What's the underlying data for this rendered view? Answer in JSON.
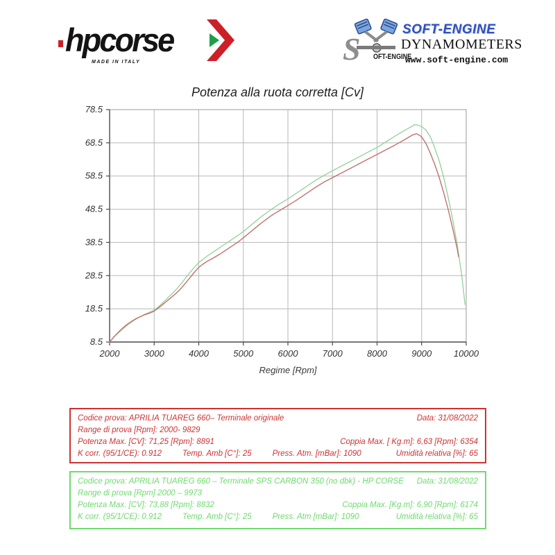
{
  "page_title": "Potenza alla ruota corretta [Cv]",
  "logos": {
    "hpcorse": {
      "wordmark": "hpcorse",
      "made_in": "MADE IN ITALY"
    },
    "softengine": {
      "s_glyph": "S",
      "s_text": "OFT-ENGINE",
      "brand": "SOFT-ENGINE",
      "subtitle": "DYNAMOMETERS",
      "url": "www.soft-engine.com"
    }
  },
  "chart_data": {
    "type": "line",
    "title": "Potenza alla ruota corretta [Cv]",
    "xlabel": "Regime [Rpm]",
    "ylabel": "",
    "xlim": [
      2000,
      10000
    ],
    "ylim": [
      8.5,
      78.5
    ],
    "x_ticks": [
      2000,
      3000,
      4000,
      5000,
      6000,
      7000,
      8000,
      9000,
      10000
    ],
    "y_ticks": [
      8.5,
      18.5,
      28.5,
      38.5,
      48.5,
      58.5,
      68.5,
      78.5
    ],
    "grid": true,
    "legend": "none (identified by info boxes below)",
    "series": [
      {
        "name": "Terminale SPS CARBON 350 (no dbk) - HP CORSE",
        "color": "#9ad29e",
        "points": [
          [
            2000,
            8.5
          ],
          [
            2100,
            10.0
          ],
          [
            2200,
            11.3
          ],
          [
            2300,
            12.5
          ],
          [
            2400,
            13.6
          ],
          [
            2500,
            14.6
          ],
          [
            2600,
            15.5
          ],
          [
            2700,
            16.2
          ],
          [
            2800,
            16.9
          ],
          [
            2900,
            17.5
          ],
          [
            3000,
            18.1
          ],
          [
            3100,
            19.2
          ],
          [
            3200,
            20.4
          ],
          [
            3300,
            21.7
          ],
          [
            3400,
            23.0
          ],
          [
            3500,
            24.4
          ],
          [
            3600,
            26.0
          ],
          [
            3700,
            27.7
          ],
          [
            3800,
            29.4
          ],
          [
            3900,
            31.0
          ],
          [
            4000,
            32.4
          ],
          [
            4100,
            33.5
          ],
          [
            4200,
            34.5
          ],
          [
            4300,
            35.4
          ],
          [
            4400,
            36.3
          ],
          [
            4500,
            37.2
          ],
          [
            4600,
            38.1
          ],
          [
            4700,
            39.0
          ],
          [
            4800,
            39.9
          ],
          [
            4900,
            40.8
          ],
          [
            5000,
            41.8
          ],
          [
            5100,
            42.9
          ],
          [
            5200,
            44.0
          ],
          [
            5300,
            45.1
          ],
          [
            5400,
            46.2
          ],
          [
            5500,
            47.2
          ],
          [
            5600,
            48.2
          ],
          [
            5700,
            49.1
          ],
          [
            5800,
            50.0
          ],
          [
            5900,
            50.8
          ],
          [
            6000,
            51.6
          ],
          [
            6200,
            53.4
          ],
          [
            6400,
            55.2
          ],
          [
            6600,
            57.0
          ],
          [
            6800,
            58.6
          ],
          [
            7000,
            60.1
          ],
          [
            7200,
            61.5
          ],
          [
            7400,
            62.9
          ],
          [
            7600,
            64.3
          ],
          [
            7800,
            65.7
          ],
          [
            8000,
            67.1
          ],
          [
            8200,
            68.8
          ],
          [
            8400,
            70.5
          ],
          [
            8600,
            72.1
          ],
          [
            8800,
            73.6
          ],
          [
            8832,
            73.9
          ],
          [
            8900,
            73.9
          ],
          [
            9000,
            73.4
          ],
          [
            9100,
            72.3
          ],
          [
            9200,
            70.2
          ],
          [
            9300,
            66.8
          ],
          [
            9400,
            62.8
          ],
          [
            9500,
            57.8
          ],
          [
            9600,
            51.8
          ],
          [
            9700,
            45.2
          ],
          [
            9800,
            37.8
          ],
          [
            9900,
            28.5
          ],
          [
            9973,
            19.8
          ]
        ]
      },
      {
        "name": "Terminale originale",
        "color": "#c0706c",
        "points": [
          [
            2000,
            8.5
          ],
          [
            2100,
            10.1
          ],
          [
            2200,
            11.5
          ],
          [
            2300,
            12.8
          ],
          [
            2400,
            13.9
          ],
          [
            2500,
            14.8
          ],
          [
            2600,
            15.6
          ],
          [
            2700,
            16.2
          ],
          [
            2800,
            16.8
          ],
          [
            2900,
            17.2
          ],
          [
            3000,
            17.8
          ],
          [
            3100,
            18.8
          ],
          [
            3200,
            19.9
          ],
          [
            3300,
            21.0
          ],
          [
            3400,
            22.1
          ],
          [
            3500,
            23.3
          ],
          [
            3600,
            24.6
          ],
          [
            3700,
            26.2
          ],
          [
            3800,
            27.8
          ],
          [
            3900,
            29.5
          ],
          [
            4000,
            31.0
          ],
          [
            4100,
            32.0
          ],
          [
            4200,
            32.9
          ],
          [
            4300,
            33.6
          ],
          [
            4400,
            34.4
          ],
          [
            4500,
            35.2
          ],
          [
            4600,
            36.1
          ],
          [
            4700,
            37.0
          ],
          [
            4800,
            37.9
          ],
          [
            4900,
            38.8
          ],
          [
            5000,
            39.9
          ],
          [
            5100,
            41.0
          ],
          [
            5200,
            42.1
          ],
          [
            5300,
            43.2
          ],
          [
            5400,
            44.3
          ],
          [
            5500,
            45.3
          ],
          [
            5600,
            46.3
          ],
          [
            5700,
            47.2
          ],
          [
            5800,
            48.0
          ],
          [
            5900,
            48.8
          ],
          [
            6000,
            49.6
          ],
          [
            6200,
            51.3
          ],
          [
            6400,
            53.1
          ],
          [
            6600,
            54.9
          ],
          [
            6800,
            56.6
          ],
          [
            7000,
            58.0
          ],
          [
            7200,
            59.4
          ],
          [
            7400,
            60.8
          ],
          [
            7600,
            62.2
          ],
          [
            7800,
            63.6
          ],
          [
            8000,
            65.0
          ],
          [
            8200,
            66.4
          ],
          [
            8400,
            67.8
          ],
          [
            8600,
            69.3
          ],
          [
            8800,
            70.9
          ],
          [
            8891,
            71.25
          ],
          [
            9000,
            70.3
          ],
          [
            9100,
            68.2
          ],
          [
            9200,
            65.2
          ],
          [
            9300,
            61.8
          ],
          [
            9400,
            57.8
          ],
          [
            9500,
            53.2
          ],
          [
            9600,
            48.2
          ],
          [
            9700,
            42.6
          ],
          [
            9800,
            36.5
          ],
          [
            9829,
            34.2
          ]
        ]
      }
    ]
  },
  "info_boxes": [
    {
      "id": "original-exhaust",
      "color": "#cc3232",
      "codice_prova": "Codice prova: APRILIA TUAREG 660– Terminale originale",
      "data": "Data: 31/08/2022",
      "range": "Range di prova [Rpm]: 2000- 9829",
      "potenza_max": "Potenza Max. [CV]:  71,25 [Rpm]: 8891",
      "coppia_max": "Coppia Max. [ Kg.m]:  6,63 [Rpm]: 6354",
      "k_corr": "K corr. (95/1/CE): 0.912",
      "temp_amb": "Temp. Amb [C°]: 25",
      "press_atm": "Press. Atm. [mBar]: 1090",
      "umidita": "Umidità relativa [%]: 65"
    },
    {
      "id": "sps-carbon-exhaust",
      "color": "#6fd96f",
      "codice_prova": "Codice prova: APRILIA TUAREG 660 – Terminale SPS CARBON 350  (no dbk) - HP CORSE",
      "data": "Data: 31/08/2022",
      "range": "Range di prova [Rpm] 2000 – 9973",
      "potenza_max": "Potenza Max. [CV]: 73,88  [Rpm]: 8832",
      "coppia_max": "Coppia Max. [Kg.m]: 6,90 [Rpm]: 6174",
      "k_corr": "K corr. (95/1/CE): 0.912",
      "temp_amb": "Temp. Amb [C°]: 25",
      "press_atm": "Press. Atm [mBar]: 1090",
      "umidita": "Umidità relativa [%]: 65"
    }
  ],
  "colors": {
    "hp_red": "#cc2027",
    "hp_green": "#1e9e48",
    "se_blue": "#3050c0",
    "grid": "#b7b7b7",
    "border": "#999999",
    "axis": "#4a4a4a",
    "tick_text": "#333333"
  }
}
